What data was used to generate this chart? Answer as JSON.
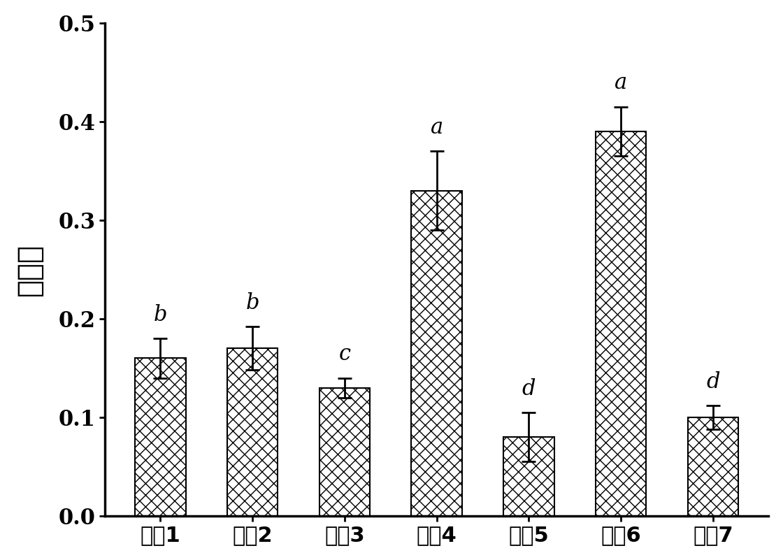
{
  "categories": [
    "产品1",
    "产品2",
    "产品3",
    "产品4",
    "产品5",
    "产品6",
    "产品7"
  ],
  "values": [
    0.16,
    0.17,
    0.13,
    0.33,
    0.08,
    0.39,
    0.1
  ],
  "errors": [
    0.02,
    0.022,
    0.01,
    0.04,
    0.025,
    0.025,
    0.012
  ],
  "sig_labels": [
    "b",
    "b",
    "c",
    "a",
    "d",
    "a",
    "d"
  ],
  "ylabel": "内聚性",
  "ylim": [
    0.0,
    0.5
  ],
  "yticks": [
    0.0,
    0.1,
    0.2,
    0.3,
    0.4,
    0.5
  ],
  "bar_color": "#ffffff",
  "bar_edgecolor": "#000000",
  "hatch": "xx",
  "bar_width": 0.55,
  "figsize": [
    11.2,
    8.01
  ],
  "dpi": 100,
  "ylabel_fontsize": 30,
  "tick_fontsize": 22,
  "sig_fontsize": 22,
  "xlabel_fontsize": 22
}
